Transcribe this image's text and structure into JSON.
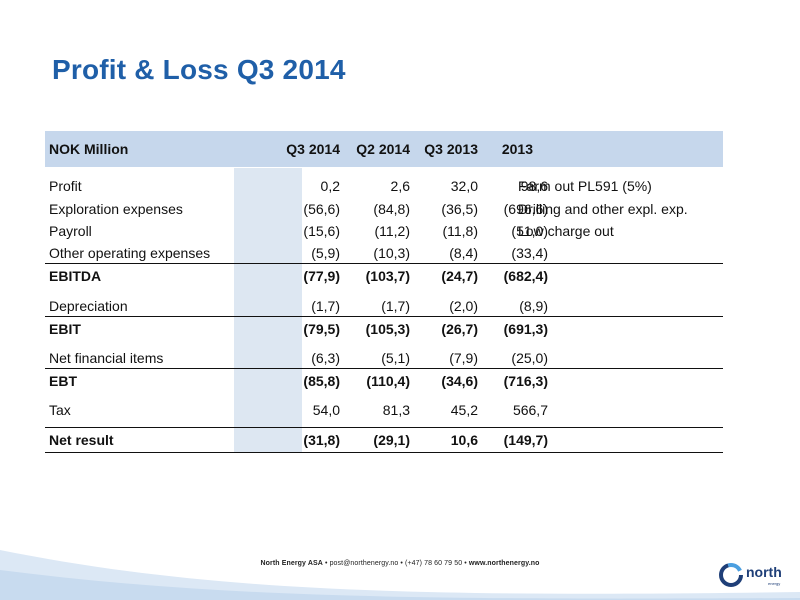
{
  "title": "Profit & Loss Q3 2014",
  "table": {
    "header": {
      "label": "NOK Million",
      "c1": "Q3 2014",
      "c2": "Q2 2014",
      "c3": "Q3 2013",
      "c4": "2013"
    },
    "rows": [
      {
        "label": "Profit",
        "c1": "0,2",
        "c2": "2,6",
        "c3": "32,0",
        "c4": "98,6",
        "comment": "Farm out PL591 (5%)"
      },
      {
        "label": "Exploration expenses",
        "c1": "(56,6)",
        "c2": "(84,8)",
        "c3": "(36,5)",
        "c4": "(696,6)",
        "comment": "Drilling and other expl. exp."
      },
      {
        "label": "Payroll",
        "c1": "(15,6)",
        "c2": "(11,2)",
        "c3": "(11,8)",
        "c4": "(51,0)",
        "comment": "Low charge out"
      },
      {
        "label": "Other operating expenses",
        "c1": "(5,9)",
        "c2": "(10,3)",
        "c3": "(8,4)",
        "c4": "(33,4)",
        "comment": ""
      },
      {
        "label": "EBITDA",
        "c1": "(77,9)",
        "c2": "(103,7)",
        "c3": "(24,7)",
        "c4": "(682,4)",
        "comment": ""
      },
      {
        "label": "Depreciation",
        "c1": "(1,7)",
        "c2": "(1,7)",
        "c3": "(2,0)",
        "c4": "(8,9)",
        "comment": ""
      },
      {
        "label": "EBIT",
        "c1": "(79,5)",
        "c2": "(105,3)",
        "c3": "(26,7)",
        "c4": "(691,3)",
        "comment": ""
      },
      {
        "label": "Net financial items",
        "c1": "(6,3)",
        "c2": "(5,1)",
        "c3": "(7,9)",
        "c4": "(25,0)",
        "comment": ""
      },
      {
        "label": "EBT",
        "c1": "(85,8)",
        "c2": "(110,4)",
        "c3": "(34,6)",
        "c4": "(716,3)",
        "comment": ""
      },
      {
        "label": "Tax",
        "c1": "54,0",
        "c2": "81,3",
        "c3": "45,2",
        "c4": "566,7",
        "comment": ""
      },
      {
        "label": "Net result",
        "c1": "(31,8)",
        "c2": "(29,1)",
        "c3": "10,6",
        "c4": "(149,7)",
        "comment": ""
      }
    ]
  },
  "footer": {
    "company": "North Energy ASA",
    "email": "post@northenergy.no",
    "phone": "(+47) 78 60 79 50",
    "website": "www.northenergy.no",
    "separator": "•"
  },
  "logo": {
    "name": "north",
    "sub": "energy"
  },
  "colors": {
    "title": "#1f5fa8",
    "header_bg": "#c6d7ec",
    "highlight_col": "#dde7f2",
    "wave": "#cfe0f2"
  }
}
